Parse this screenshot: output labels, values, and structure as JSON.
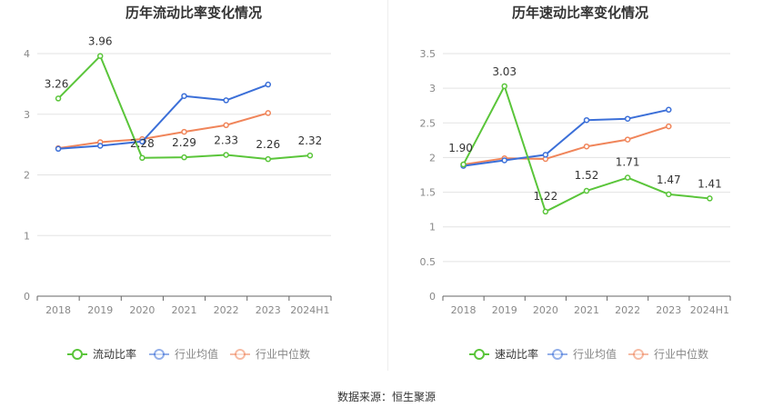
{
  "colors": {
    "main": "#5ac53a",
    "avg": "#3b6fd8",
    "median": "#f0855a",
    "grid": "#e3e3e3",
    "axis": "#666666",
    "tick": "#888888",
    "label": "#333333"
  },
  "source_text": "数据来源：恒生聚源",
  "chart_data": [
    {
      "type": "line",
      "title": "历年流动比率变化情况",
      "categories": [
        "2018",
        "2019",
        "2020",
        "2021",
        "2022",
        "2023",
        "2024H1"
      ],
      "ylim": [
        0,
        4
      ],
      "yticks": [
        0,
        1,
        2,
        3,
        4
      ],
      "ytick_labels": [
        "0",
        "1",
        "2",
        "3",
        "4"
      ],
      "grid": true,
      "legend_position": "bottom",
      "series": [
        {
          "name": "流动比率",
          "color": "#5ac53a",
          "values": [
            3.26,
            3.96,
            2.28,
            2.29,
            2.33,
            2.26,
            2.32
          ],
          "labels": [
            "3.26",
            "3.96",
            "2.28",
            "2.29",
            "2.33",
            "2.26",
            "2.32"
          ]
        },
        {
          "name": "行业均值",
          "color": "#3b6fd8",
          "values": [
            2.43,
            2.48,
            2.55,
            3.3,
            3.23,
            3.49,
            null
          ]
        },
        {
          "name": "行业中位数",
          "color": "#f0855a",
          "values": [
            2.44,
            2.54,
            2.59,
            2.71,
            2.82,
            3.02,
            null
          ]
        }
      ]
    },
    {
      "type": "line",
      "title": "历年速动比率变化情况",
      "categories": [
        "2018",
        "2019",
        "2020",
        "2021",
        "2022",
        "2023",
        "2024H1"
      ],
      "ylim": [
        0,
        3.5
      ],
      "yticks": [
        0,
        0.5,
        1,
        1.5,
        2,
        2.5,
        3,
        3.5
      ],
      "ytick_labels": [
        "0",
        "0.5",
        "1",
        "1.5",
        "2",
        "2.5",
        "3",
        "3.5"
      ],
      "grid": true,
      "legend_position": "bottom",
      "series": [
        {
          "name": "速动比率",
          "color": "#5ac53a",
          "values": [
            1.9,
            3.03,
            1.22,
            1.52,
            1.71,
            1.47,
            1.41
          ],
          "labels": [
            "1.90",
            "3.03",
            "1.22",
            "1.52",
            "1.71",
            "1.47",
            "1.41"
          ]
        },
        {
          "name": "行业均值",
          "color": "#3b6fd8",
          "values": [
            1.88,
            1.96,
            2.04,
            2.54,
            2.56,
            2.69,
            null
          ]
        },
        {
          "name": "行业中位数",
          "color": "#f0855a",
          "values": [
            1.9,
            1.99,
            1.98,
            2.16,
            2.26,
            2.45,
            null
          ]
        }
      ]
    }
  ]
}
